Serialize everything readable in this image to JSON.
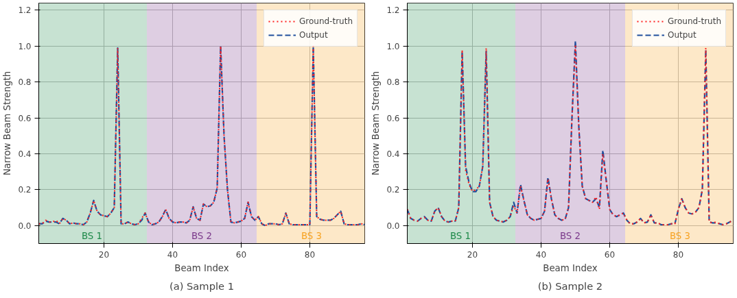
{
  "chart_data": [
    {
      "type": "line",
      "title": "(a) Sample 1",
      "xlabel": "Beam Index",
      "ylabel": "Narrow Beam Strength",
      "xlim": [
        1,
        96
      ],
      "ylim": [
        -0.1,
        1.24
      ],
      "xticks": [
        20,
        40,
        60,
        80
      ],
      "yticks": [
        {
          "value": 0,
          "label": "0.0"
        },
        {
          "value": 0.2,
          "label": "0.2"
        },
        {
          "value": 0.4,
          "label": "0.4"
        },
        {
          "value": 0.6,
          "label": "0.6"
        },
        {
          "value": 0.8,
          "label": "0.8"
        },
        {
          "value": 1,
          "label": "1.0"
        },
        {
          "value": 1.2,
          "label": "1.2"
        }
      ],
      "grid": true,
      "legend": "top right",
      "x": [
        1,
        2,
        3,
        4,
        5,
        6,
        7,
        8,
        9,
        10,
        11,
        12,
        13,
        14,
        15,
        16,
        17,
        18,
        19,
        20,
        21,
        22,
        23,
        24,
        25,
        26,
        27,
        28,
        29,
        30,
        31,
        32,
        33,
        34,
        35,
        36,
        37,
        38,
        39,
        40,
        41,
        42,
        43,
        44,
        45,
        46,
        47,
        48,
        49,
        50,
        51,
        52,
        53,
        54,
        55,
        56,
        57,
        58,
        59,
        60,
        61,
        62,
        63,
        64,
        65,
        66,
        67,
        68,
        69,
        70,
        71,
        72,
        73,
        74,
        75,
        76,
        77,
        78,
        79,
        80,
        81,
        82,
        83,
        84,
        85,
        86,
        87,
        88,
        89,
        90,
        91,
        92,
        93,
        94,
        95,
        96
      ],
      "series": [
        {
          "name": "Ground-truth",
          "color": "#ff2020",
          "line_style": "dotted",
          "values": [
            0.01,
            0.01,
            0.03,
            0.02,
            0.02,
            0.03,
            0.01,
            0.04,
            0.03,
            0.01,
            0.015,
            0.01,
            0.01,
            0.005,
            0.02,
            0.07,
            0.14,
            0.08,
            0.06,
            0.055,
            0.05,
            0.07,
            0.1,
            0.99,
            0.01,
            0.01,
            0.02,
            0.01,
            0.005,
            0.01,
            0.04,
            0.07,
            0.02,
            0.005,
            0.01,
            0.02,
            0.05,
            0.09,
            0.04,
            0.02,
            0.015,
            0.02,
            0.02,
            0.015,
            0.03,
            0.105,
            0.04,
            0.03,
            0.12,
            0.105,
            0.11,
            0.13,
            0.21,
            1.0,
            0.5,
            0.2,
            0.02,
            0.015,
            0.02,
            0.025,
            0.04,
            0.13,
            0.05,
            0.03,
            0.05,
            0.01,
            0.0,
            0.01,
            0.01,
            0.01,
            0.005,
            0.01,
            0.07,
            0.01,
            0.005,
            0.005,
            0.005,
            0.005,
            0.005,
            0.005,
            1.0,
            0.05,
            0.035,
            0.03,
            0.03,
            0.03,
            0.04,
            0.06,
            0.08,
            0.01,
            0.005,
            0.005,
            0.005,
            0.005,
            0.01,
            0.005
          ]
        },
        {
          "name": "Output",
          "color": "#1f4e9c",
          "line_style": "dashed",
          "values": [
            0.01,
            0.01,
            0.025,
            0.02,
            0.02,
            0.02,
            0.01,
            0.04,
            0.03,
            0.01,
            0.015,
            0.01,
            0.01,
            0.005,
            0.02,
            0.07,
            0.14,
            0.08,
            0.06,
            0.055,
            0.05,
            0.07,
            0.1,
            0.99,
            0.01,
            0.01,
            0.02,
            0.01,
            0.005,
            0.01,
            0.03,
            0.07,
            0.02,
            0.005,
            0.01,
            0.02,
            0.05,
            0.09,
            0.04,
            0.02,
            0.015,
            0.02,
            0.02,
            0.015,
            0.03,
            0.105,
            0.04,
            0.03,
            0.12,
            0.105,
            0.11,
            0.13,
            0.21,
            1.0,
            0.5,
            0.2,
            0.02,
            0.015,
            0.02,
            0.025,
            0.04,
            0.13,
            0.05,
            0.03,
            0.05,
            0.01,
            0.0,
            0.01,
            0.01,
            0.01,
            0.005,
            0.01,
            0.07,
            0.01,
            0.005,
            0.005,
            0.005,
            0.005,
            0.005,
            0.005,
            1.0,
            0.05,
            0.035,
            0.03,
            0.03,
            0.03,
            0.04,
            0.06,
            0.08,
            0.01,
            0.005,
            0.005,
            0.005,
            0.005,
            0.01,
            0.005
          ]
        }
      ],
      "bands": [
        {
          "axis": "x",
          "from": 0.5,
          "to": 32.5,
          "label": "BS 1",
          "color": "#1f8a4a"
        },
        {
          "axis": "x",
          "from": 32.5,
          "to": 64.5,
          "label": "BS 2",
          "color": "#7b3a8b"
        },
        {
          "axis": "x",
          "from": 64.5,
          "to": 96.5,
          "label": "BS 3",
          "color": "#f7a323"
        }
      ]
    },
    {
      "type": "line",
      "title": "(b) Sample 2",
      "xlabel": "Beam Index",
      "ylabel": "Narrow Beam Strength",
      "xlim": [
        1,
        96
      ],
      "ylim": [
        -0.1,
        1.24
      ],
      "xticks": [
        20,
        40,
        60,
        80
      ],
      "yticks": [
        {
          "value": 0,
          "label": "0.0"
        },
        {
          "value": 0.2,
          "label": "0.2"
        },
        {
          "value": 0.4,
          "label": "0.4"
        },
        {
          "value": 0.6,
          "label": "0.6"
        },
        {
          "value": 0.8,
          "label": "0.8"
        },
        {
          "value": 1,
          "label": "1.0"
        },
        {
          "value": 1.2,
          "label": "1.2"
        }
      ],
      "grid": true,
      "legend": "top right",
      "x": [
        1,
        2,
        3,
        4,
        5,
        6,
        7,
        8,
        9,
        10,
        11,
        12,
        13,
        14,
        15,
        16,
        17,
        18,
        19,
        20,
        21,
        22,
        23,
        24,
        25,
        26,
        27,
        28,
        29,
        30,
        31,
        32,
        33,
        34,
        35,
        36,
        37,
        38,
        39,
        40,
        41,
        42,
        43,
        44,
        45,
        46,
        47,
        48,
        49,
        50,
        51,
        52,
        53,
        54,
        55,
        56,
        57,
        58,
        59,
        60,
        61,
        62,
        63,
        64,
        65,
        66,
        67,
        68,
        69,
        70,
        71,
        72,
        73,
        74,
        75,
        76,
        77,
        78,
        79,
        80,
        81,
        82,
        83,
        84,
        85,
        86,
        87,
        88,
        89,
        90,
        91,
        92,
        93,
        94,
        95,
        96
      ],
      "series": [
        {
          "name": "Ground-truth",
          "color": "#ff2020",
          "line_style": "dotted",
          "values": [
            0.09,
            0.04,
            0.03,
            0.025,
            0.04,
            0.045,
            0.03,
            0.025,
            0.08,
            0.1,
            0.05,
            0.025,
            0.02,
            0.025,
            0.025,
            0.1,
            0.98,
            0.31,
            0.23,
            0.19,
            0.2,
            0.22,
            0.33,
            0.99,
            0.13,
            0.05,
            0.03,
            0.025,
            0.02,
            0.03,
            0.05,
            0.11,
            0.07,
            0.22,
            0.14,
            0.06,
            0.04,
            0.03,
            0.035,
            0.04,
            0.08,
            0.26,
            0.15,
            0.06,
            0.04,
            0.03,
            0.035,
            0.1,
            0.6,
            1.0,
            0.55,
            0.22,
            0.15,
            0.14,
            0.13,
            0.16,
            0.09,
            0.4,
            0.25,
            0.09,
            0.06,
            0.05,
            0.06,
            0.07,
            0.03,
            0.01,
            0.01,
            0.02,
            0.04,
            0.015,
            0.02,
            0.06,
            0.015,
            0.015,
            0.005,
            0.005,
            0.005,
            0.01,
            0.01,
            0.09,
            0.15,
            0.1,
            0.07,
            0.065,
            0.075,
            0.1,
            0.2,
            0.99,
            0.02,
            0.015,
            0.02,
            0.01,
            0.005,
            0.01,
            0.02,
            0.03
          ]
        },
        {
          "name": "Output",
          "color": "#1f4e9c",
          "line_style": "dashed",
          "values": [
            0.09,
            0.04,
            0.03,
            0.025,
            0.04,
            0.05,
            0.03,
            0.025,
            0.08,
            0.1,
            0.05,
            0.025,
            0.02,
            0.025,
            0.025,
            0.1,
            0.97,
            0.33,
            0.24,
            0.19,
            0.19,
            0.22,
            0.33,
            0.97,
            0.13,
            0.05,
            0.03,
            0.025,
            0.02,
            0.03,
            0.05,
            0.13,
            0.07,
            0.23,
            0.14,
            0.06,
            0.04,
            0.03,
            0.035,
            0.04,
            0.08,
            0.27,
            0.15,
            0.06,
            0.04,
            0.03,
            0.035,
            0.1,
            0.6,
            1.03,
            0.55,
            0.22,
            0.15,
            0.14,
            0.13,
            0.15,
            0.1,
            0.42,
            0.25,
            0.09,
            0.06,
            0.05,
            0.06,
            0.07,
            0.03,
            0.01,
            0.01,
            0.02,
            0.04,
            0.015,
            0.02,
            0.06,
            0.015,
            0.015,
            0.005,
            0.005,
            0.005,
            0.01,
            0.01,
            0.09,
            0.15,
            0.1,
            0.07,
            0.065,
            0.075,
            0.1,
            0.2,
            0.98,
            0.02,
            0.015,
            0.015,
            0.01,
            0.005,
            0.01,
            0.02,
            0.03
          ]
        }
      ],
      "bands": [
        {
          "axis": "x",
          "from": 0.5,
          "to": 32.5,
          "label": "BS 1",
          "color": "#1f8a4a"
        },
        {
          "axis": "x",
          "from": 32.5,
          "to": 64.5,
          "label": "BS 2",
          "color": "#7b3a8b"
        },
        {
          "axis": "x",
          "from": 64.5,
          "to": 96.5,
          "label": "BS 3",
          "color": "#f7a323"
        }
      ]
    }
  ]
}
